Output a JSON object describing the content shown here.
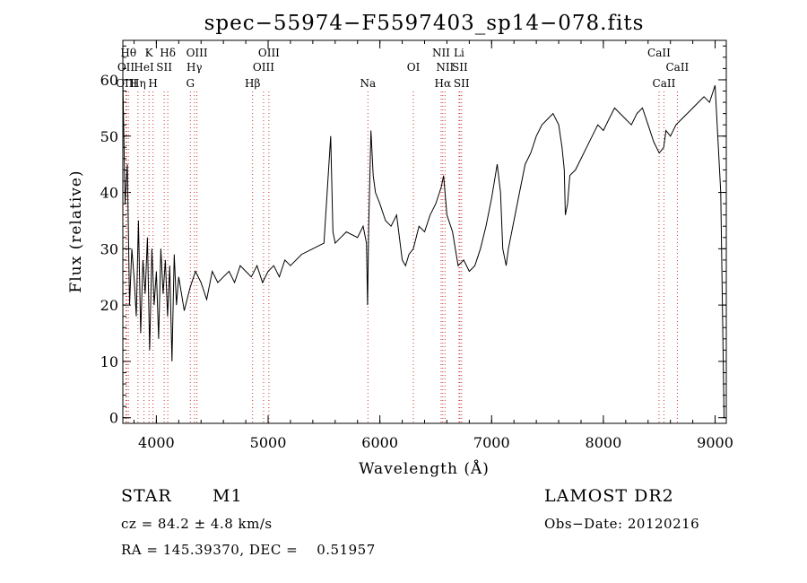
{
  "chart_data": {
    "type": "line",
    "title": "spec−55974−F5597403_sp14−078.fits",
    "xlabel": "Wavelength (Å)",
    "ylabel": "Flux (relative)",
    "xlim": [
      3700,
      9100
    ],
    "ylim": [
      -1,
      67
    ],
    "x_ticks": [
      4000,
      5000,
      6000,
      7000,
      8000,
      9000
    ],
    "y_ticks": [
      0,
      10,
      20,
      30,
      40,
      50,
      60
    ],
    "grid": false,
    "line_color": "#000000",
    "marker_color": "#cc3333",
    "series": [
      {
        "x": [
          3700,
          3720,
          3740,
          3760,
          3780,
          3800,
          3820,
          3840,
          3860,
          3880,
          3900,
          3920,
          3940,
          3960,
          3980,
          4000,
          4020,
          4040,
          4060,
          4080,
          4100,
          4120,
          4140,
          4160,
          4180,
          4200,
          4250,
          4300,
          4350,
          4400,
          4450,
          4500,
          4550,
          4600,
          4650,
          4700,
          4750,
          4800,
          4850,
          4900,
          4950,
          5000,
          5050,
          5100,
          5150,
          5200,
          5300,
          5400,
          5500,
          5560,
          5580,
          5600,
          5650,
          5700,
          5800,
          5850,
          5880,
          5890,
          5900,
          5920,
          5940,
          5960,
          6000,
          6050,
          6100,
          6150,
          6200,
          6230,
          6260,
          6300,
          6350,
          6400,
          6450,
          6500,
          6550,
          6570,
          6600,
          6650,
          6700,
          6750,
          6800,
          6850,
          6900,
          6950,
          7000,
          7050,
          7080,
          7100,
          7130,
          7150,
          7200,
          7250,
          7300,
          7350,
          7400,
          7450,
          7500,
          7550,
          7600,
          7630,
          7650,
          7660,
          7680,
          7700,
          7750,
          7800,
          7850,
          7900,
          7950,
          8000,
          8050,
          8100,
          8150,
          8200,
          8250,
          8300,
          8350,
          8400,
          8450,
          8500,
          8540,
          8560,
          8600,
          8650,
          8700,
          8750,
          8800,
          8850,
          8900,
          8950,
          9000,
          9050,
          9080
        ],
        "values": [
          60,
          38,
          45,
          20,
          30,
          25,
          18,
          35,
          15,
          28,
          22,
          32,
          12,
          30,
          20,
          26,
          14,
          30,
          22,
          28,
          18,
          27,
          10,
          29,
          20,
          25,
          19,
          23,
          26,
          24,
          21,
          26,
          24,
          25,
          26,
          24,
          27,
          26,
          25,
          27,
          24,
          26,
          27,
          25,
          28,
          27,
          29,
          30,
          31,
          50,
          33,
          31,
          32,
          33,
          32,
          34,
          31,
          20,
          34,
          51,
          43,
          40,
          38,
          35,
          34,
          36,
          28,
          27,
          29,
          30,
          34,
          33,
          36,
          38,
          41,
          43,
          36,
          33,
          27,
          28,
          26,
          27,
          30,
          34,
          39,
          45,
          40,
          30,
          27,
          30,
          35,
          40,
          45,
          47,
          50,
          52,
          53,
          54,
          52,
          48,
          44,
          36,
          38,
          43,
          44,
          46,
          48,
          50,
          52,
          51,
          53,
          55,
          54,
          53,
          52,
          54,
          55,
          52,
          49,
          47,
          48,
          51,
          50,
          52,
          53,
          54,
          55,
          56,
          57,
          56,
          59,
          40,
          0
        ]
      }
    ],
    "line_markers": [
      {
        "wl": 3750,
        "label": "Hθ",
        "row": 0
      },
      {
        "wl": 3728,
        "label": "OII",
        "row": 1
      },
      {
        "wl": 3734,
        "label": "OIII",
        "row": 2
      },
      {
        "wl": 3835,
        "label": "Hη",
        "row": 2
      },
      {
        "wl": 3934,
        "label": "K",
        "row": 0
      },
      {
        "wl": 3889,
        "label": "HeI",
        "row": 1
      },
      {
        "wl": 3970,
        "label": "H",
        "row": 2
      },
      {
        "wl": 4070,
        "label": "SII",
        "row": 1
      },
      {
        "wl": 4102,
        "label": "Hδ",
        "row": 0
      },
      {
        "wl": 4363,
        "label": "OIII",
        "row": 0
      },
      {
        "wl": 4340,
        "label": "Hγ",
        "row": 1
      },
      {
        "wl": 4304,
        "label": "G",
        "row": 2
      },
      {
        "wl": 4861,
        "label": "Hβ",
        "row": 2
      },
      {
        "wl": 4959,
        "label": "OIII",
        "row": 1
      },
      {
        "wl": 5007,
        "label": "OIII",
        "row": 0
      },
      {
        "wl": 5893,
        "label": "Na",
        "row": 2
      },
      {
        "wl": 6300,
        "label": "OI",
        "row": 1
      },
      {
        "wl": 6548,
        "label": "NII",
        "row": 0
      },
      {
        "wl": 6583,
        "label": "NII",
        "row": 1
      },
      {
        "wl": 6563,
        "label": "Hα",
        "row": 2
      },
      {
        "wl": 6708,
        "label": "Li",
        "row": 0
      },
      {
        "wl": 6716,
        "label": "SII",
        "row": 1
      },
      {
        "wl": 6731,
        "label": "SII",
        "row": 2
      },
      {
        "wl": 8498,
        "label": "CaII",
        "row": 0
      },
      {
        "wl": 8542,
        "label": "CaII",
        "row": 2
      },
      {
        "wl": 8662,
        "label": "CaII",
        "row": 1
      }
    ]
  },
  "annotations": {
    "class": "STAR",
    "subclass": "M1",
    "survey": "LAMOST DR2",
    "cz": "cz = 84.2 ± 4.8 km/s",
    "obs_date": "Obs−Date: 20120216",
    "coords": "RA = 145.39370, DEC =    0.51957"
  }
}
